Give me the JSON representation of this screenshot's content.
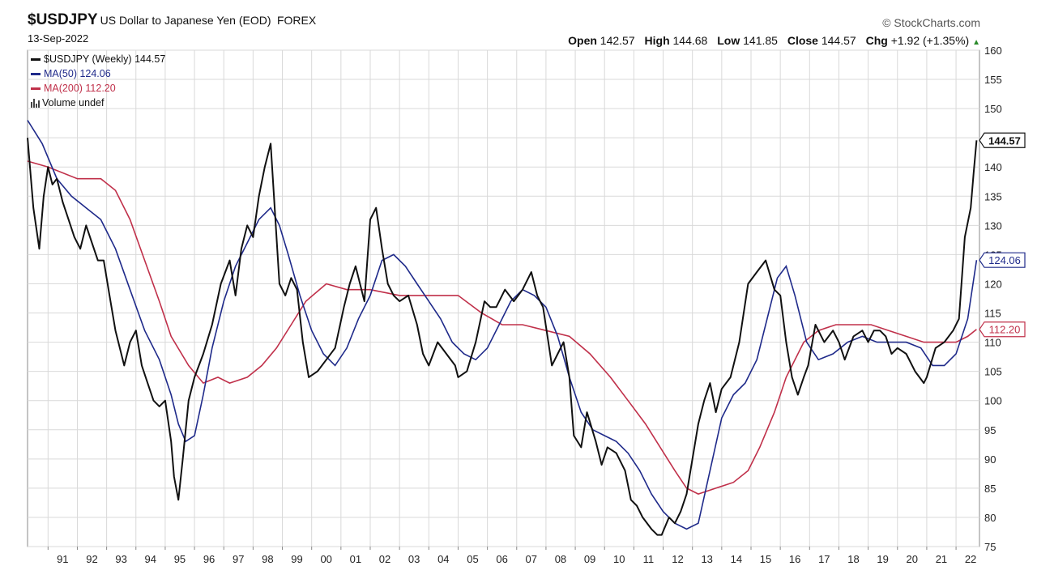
{
  "header": {
    "symbol": "$USDJPY",
    "description": "US Dollar to Japanese Yen (EOD)",
    "exchange": "FOREX",
    "date": "13-Sep-2022",
    "brand": "© StockCharts.com"
  },
  "quote": {
    "open_label": "Open",
    "open": "142.57",
    "high_label": "High",
    "high": "144.68",
    "low_label": "Low",
    "low": "141.85",
    "close_label": "Close",
    "close": "144.57",
    "chg_label": "Chg",
    "chg": "+1.92 (+1.35%)"
  },
  "legend": {
    "price": "$USDJPY (Weekly) 144.57",
    "ma50": "MA(50) 124.06",
    "ma200": "MA(200) 112.20",
    "volume": "Volume undef"
  },
  "colors": {
    "price": "#111111",
    "ma50": "#1f2a8a",
    "ma200": "#c0304a",
    "grid": "#d9d9d9",
    "axis": "#888888"
  },
  "chart_data": {
    "type": "line",
    "x_start_year": 1990.3,
    "x_end_year": 2022.8,
    "ylim": [
      75,
      160
    ],
    "y_ticks": [
      75,
      80,
      85,
      90,
      95,
      100,
      105,
      110,
      115,
      120,
      125,
      130,
      135,
      140,
      145,
      150,
      155,
      160
    ],
    "x_ticks": [
      {
        "year": 1991,
        "label": "91"
      },
      {
        "year": 1992,
        "label": "92"
      },
      {
        "year": 1993,
        "label": "93"
      },
      {
        "year": 1994,
        "label": "94"
      },
      {
        "year": 1995,
        "label": "95"
      },
      {
        "year": 1996,
        "label": "96"
      },
      {
        "year": 1997,
        "label": "97"
      },
      {
        "year": 1998,
        "label": "98"
      },
      {
        "year": 1999,
        "label": "99"
      },
      {
        "year": 2000,
        "label": "00"
      },
      {
        "year": 2001,
        "label": "01"
      },
      {
        "year": 2002,
        "label": "02"
      },
      {
        "year": 2003,
        "label": "03"
      },
      {
        "year": 2004,
        "label": "04"
      },
      {
        "year": 2005,
        "label": "05"
      },
      {
        "year": 2006,
        "label": "06"
      },
      {
        "year": 2007,
        "label": "07"
      },
      {
        "year": 2008,
        "label": "08"
      },
      {
        "year": 2009,
        "label": "09"
      },
      {
        "year": 2010,
        "label": "10"
      },
      {
        "year": 2011,
        "label": "11"
      },
      {
        "year": 2012,
        "label": "12"
      },
      {
        "year": 2013,
        "label": "13"
      },
      {
        "year": 2014,
        "label": "14"
      },
      {
        "year": 2015,
        "label": "15"
      },
      {
        "year": 2016,
        "label": "16"
      },
      {
        "year": 2017,
        "label": "17"
      },
      {
        "year": 2018,
        "label": "18"
      },
      {
        "year": 2019,
        "label": "19"
      },
      {
        "year": 2020,
        "label": "20"
      },
      {
        "year": 2021,
        "label": "21"
      },
      {
        "year": 2022,
        "label": "22"
      }
    ],
    "last_labels": {
      "price": "144.57",
      "ma50": "124.06",
      "ma200": "112.20"
    },
    "series": [
      {
        "key": "price",
        "x": [
          1990.3,
          1990.5,
          1990.7,
          1990.85,
          1991.0,
          1991.15,
          1991.3,
          1991.5,
          1991.7,
          1991.9,
          1992.1,
          1992.3,
          1992.5,
          1992.7,
          1992.9,
          1993.1,
          1993.3,
          1993.5,
          1993.6,
          1993.8,
          1994.0,
          1994.2,
          1994.4,
          1994.6,
          1994.8,
          1995.0,
          1995.2,
          1995.3,
          1995.45,
          1995.6,
          1995.8,
          1996.0,
          1996.3,
          1996.6,
          1996.9,
          1997.2,
          1997.4,
          1997.6,
          1997.8,
          1998.0,
          1998.2,
          1998.4,
          1998.6,
          1998.75,
          1998.9,
          1999.1,
          1999.3,
          1999.5,
          1999.7,
          1999.9,
          2000.2,
          2000.5,
          2000.8,
          2001.1,
          2001.3,
          2001.5,
          2001.8,
          2002.0,
          2002.2,
          2002.4,
          2002.6,
          2002.8,
          2003.0,
          2003.3,
          2003.6,
          2003.8,
          2004.0,
          2004.3,
          2004.6,
          2004.9,
          2005.0,
          2005.3,
          2005.6,
          2005.9,
          2006.1,
          2006.3,
          2006.6,
          2006.9,
          2007.2,
          2007.5,
          2007.7,
          2007.9,
          2008.2,
          2008.4,
          2008.6,
          2008.8,
          2008.95,
          2009.2,
          2009.4,
          2009.7,
          2009.9,
          2010.1,
          2010.4,
          2010.7,
          2010.9,
          2011.1,
          2011.3,
          2011.6,
          2011.8,
          2011.95,
          2012.2,
          2012.4,
          2012.6,
          2012.8,
          2013.0,
          2013.2,
          2013.4,
          2013.6,
          2013.8,
          2014.0,
          2014.3,
          2014.6,
          2014.9,
          2015.2,
          2015.5,
          2015.8,
          2016.0,
          2016.2,
          2016.4,
          2016.6,
          2016.8,
          2016.95,
          2017.2,
          2017.5,
          2017.8,
          2018.0,
          2018.2,
          2018.5,
          2018.8,
          2019.0,
          2019.2,
          2019.4,
          2019.6,
          2019.8,
          2020.0,
          2020.3,
          2020.6,
          2020.9,
          2021.0,
          2021.3,
          2021.6,
          2021.9,
          2022.1,
          2022.3,
          2022.5,
          2022.6,
          2022.7
        ],
        "values": [
          145,
          133,
          126,
          135,
          140,
          137,
          138,
          134,
          131,
          128,
          126,
          130,
          127,
          124,
          124,
          118,
          112,
          108,
          106,
          110,
          112,
          106,
          103,
          100,
          99,
          100,
          93,
          87,
          83,
          90,
          100,
          104,
          108,
          113,
          120,
          124,
          118,
          126,
          130,
          128,
          135,
          140,
          144,
          132,
          120,
          118,
          121,
          119,
          110,
          104,
          105,
          107,
          109,
          116,
          120,
          123,
          117,
          131,
          133,
          126,
          120,
          118,
          117,
          118,
          113,
          108,
          106,
          110,
          108,
          106,
          104,
          105,
          110,
          117,
          116,
          116,
          119,
          117,
          119,
          122,
          118,
          116,
          106,
          108,
          110,
          104,
          94,
          92,
          98,
          93,
          89,
          92,
          91,
          88,
          83,
          82,
          80,
          78,
          77,
          77,
          80,
          79,
          81,
          84,
          90,
          96,
          100,
          103,
          98,
          102,
          104,
          110,
          120,
          122,
          124,
          119,
          118,
          110,
          104,
          101,
          104,
          106,
          113,
          110,
          112,
          110,
          107,
          111,
          112,
          110,
          112,
          112,
          111,
          108,
          109,
          108,
          105,
          103,
          104,
          109,
          110,
          112,
          114,
          128,
          133,
          139,
          144.57
        ]
      },
      {
        "key": "ma50",
        "x": [
          1990.3,
          1990.8,
          1991.3,
          1991.8,
          1992.3,
          1992.8,
          1993.3,
          1993.8,
          1994.3,
          1994.8,
          1995.2,
          1995.45,
          1995.7,
          1996.0,
          1996.3,
          1996.6,
          1997.0,
          1997.4,
          1997.8,
          1998.2,
          1998.6,
          1998.9,
          1999.2,
          1999.6,
          2000.0,
          2000.4,
          2000.8,
          2001.2,
          2001.6,
          2002.0,
          2002.4,
          2002.8,
          2003.2,
          2003.6,
          2004.0,
          2004.4,
          2004.8,
          2005.2,
          2005.6,
          2006.0,
          2006.4,
          2006.8,
          2007.2,
          2007.6,
          2008.0,
          2008.4,
          2008.8,
          2009.2,
          2009.6,
          2010.0,
          2010.4,
          2010.8,
          2011.2,
          2011.6,
          2012.0,
          2012.4,
          2012.8,
          2013.2,
          2013.6,
          2014.0,
          2014.4,
          2014.8,
          2015.2,
          2015.6,
          2015.9,
          2016.2,
          2016.5,
          2016.9,
          2017.3,
          2017.8,
          2018.3,
          2018.8,
          2019.3,
          2019.8,
          2020.3,
          2020.8,
          2021.2,
          2021.6,
          2022.0,
          2022.4,
          2022.7
        ],
        "values": [
          148,
          144,
          138,
          135,
          133,
          131,
          126,
          119,
          112,
          107,
          101,
          96,
          93,
          94,
          101,
          109,
          117,
          123,
          127,
          131,
          133,
          130,
          125,
          118,
          112,
          108,
          106,
          109,
          114,
          118,
          124,
          125,
          123,
          120,
          117,
          114,
          110,
          108,
          107,
          109,
          113,
          117,
          119,
          118,
          116,
          111,
          104,
          98,
          95,
          94,
          93,
          91,
          88,
          84,
          81,
          79,
          78,
          79,
          88,
          97,
          101,
          103,
          107,
          115,
          121,
          123,
          118,
          110,
          107,
          108,
          110,
          111,
          110,
          110,
          110,
          109,
          106,
          106,
          108,
          114,
          124.06
        ]
      },
      {
        "key": "ma200",
        "x": [
          1990.3,
          1991.0,
          1992.0,
          1992.8,
          1993.3,
          1993.8,
          1994.3,
          1994.8,
          1995.2,
          1995.8,
          1996.3,
          1996.8,
          1997.2,
          1997.8,
          1998.3,
          1998.8,
          1999.3,
          1999.8,
          2000.5,
          2001.2,
          2002.0,
          2003.0,
          2004.0,
          2005.0,
          2005.8,
          2006.5,
          2007.2,
          2008.0,
          2008.8,
          2009.5,
          2010.2,
          2010.8,
          2011.4,
          2011.9,
          2012.4,
          2012.8,
          2013.2,
          2013.8,
          2014.4,
          2014.9,
          2015.3,
          2015.8,
          2016.2,
          2016.8,
          2017.3,
          2017.9,
          2018.5,
          2019.1,
          2019.7,
          2020.3,
          2020.9,
          2021.5,
          2022.0,
          2022.4,
          2022.7
        ],
        "values": [
          141,
          140,
          138,
          138,
          136,
          131,
          124,
          117,
          111,
          106,
          103,
          104,
          103,
          104,
          106,
          109,
          113,
          117,
          120,
          119,
          119,
          118,
          118,
          118,
          115,
          113,
          113,
          112,
          111,
          108,
          104,
          100,
          96,
          92,
          88,
          85,
          84,
          85,
          86,
          88,
          92,
          98,
          104,
          110,
          112,
          113,
          113,
          113,
          112,
          111,
          110,
          110,
          110,
          111,
          112.2
        ]
      }
    ]
  }
}
